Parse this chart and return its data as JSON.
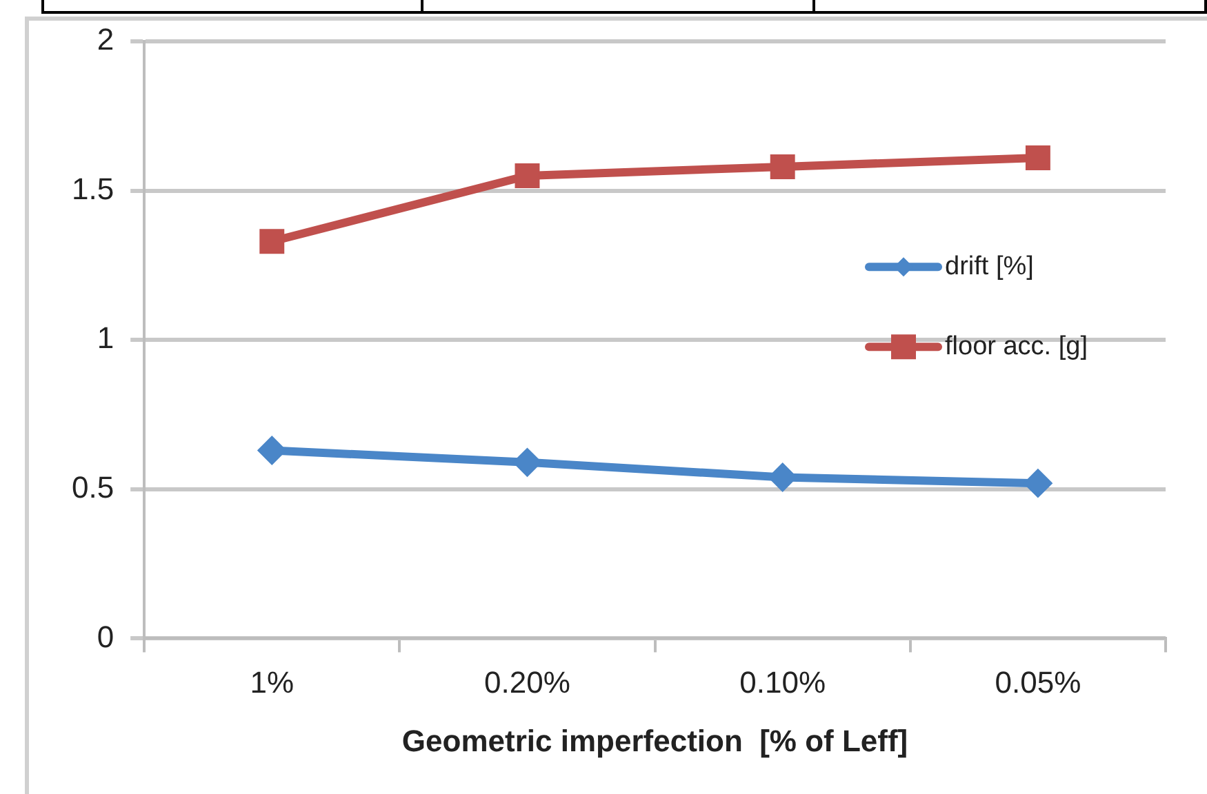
{
  "chart_data": {
    "type": "line",
    "xlabel": "Geometric imperfection  [% of Leff]",
    "categories": [
      "1%",
      "0.20%",
      "0.10%",
      "0.05%"
    ],
    "series": [
      {
        "name": "drift [%]",
        "color": "#4a86c8",
        "marker": "diamond",
        "values": [
          0.63,
          0.59,
          0.54,
          0.52
        ]
      },
      {
        "name": "floor acc. [g]",
        "color": "#c0504d",
        "marker": "square",
        "values": [
          1.33,
          1.55,
          1.58,
          1.61
        ]
      }
    ],
    "ylim": [
      0,
      2
    ],
    "yticks": [
      0,
      0.5,
      1,
      1.5,
      2
    ],
    "grid": "y",
    "legend": "right"
  }
}
